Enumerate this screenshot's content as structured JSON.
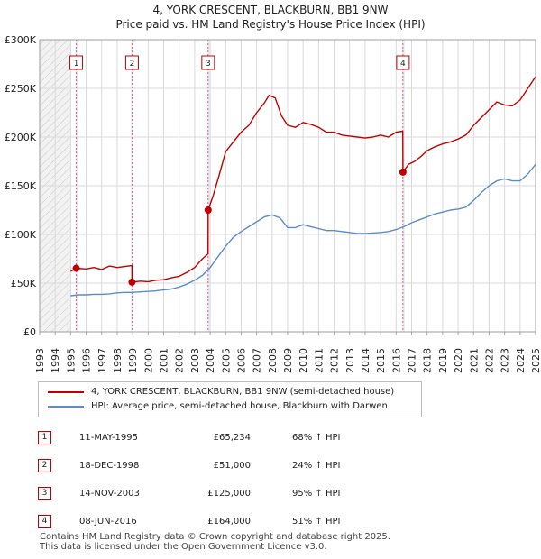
{
  "title_line1": "4, YORK CRESCENT, BLACKBURN, BB1 9NW",
  "title_line2": "Price paid vs. HM Land Registry's House Price Index (HPI)",
  "legend": {
    "property_label": "4, YORK CRESCENT, BLACKBURN, BB1 9NW (semi-detached house)",
    "hpi_label": "HPI: Average price, semi-detached house, Blackburn with Darwen"
  },
  "colors": {
    "property": "#c00000",
    "hpi": "#5b8ccc",
    "shade": "#dce6f5",
    "grid": "#d9d9d9"
  },
  "sales": [
    {
      "num": "1",
      "date": "11-MAY-1995",
      "price": "£65,234",
      "hpi_change": "68% ↑ HPI"
    },
    {
      "num": "2",
      "date": "18-DEC-1998",
      "price": "£51,000",
      "hpi_change": "24% ↑ HPI"
    },
    {
      "num": "3",
      "date": "14-NOV-2003",
      "price": "£125,000",
      "hpi_change": "95% ↑ HPI"
    },
    {
      "num": "4",
      "date": "08-JUN-2016",
      "price": "£164,000",
      "hpi_change": "51% ↑ HPI"
    }
  ],
  "footer_line1": "Contains HM Land Registry data © Crown copyright and database right 2025.",
  "footer_line2": "This data is licensed under the Open Government Licence v3.0.",
  "chart_data": {
    "type": "line",
    "title": "4, YORK CRESCENT, BLACKBURN, BB1 9NW",
    "subtitle": "Price paid vs. HM Land Registry's House Price Index (HPI)",
    "xlabel": "",
    "ylabel": "",
    "xlim": [
      1993,
      2025
    ],
    "ylim": [
      0,
      300000
    ],
    "y_ticks": [
      0,
      50000,
      100000,
      150000,
      200000,
      250000,
      300000
    ],
    "y_tick_labels": [
      "£0",
      "£50K",
      "£100K",
      "£150K",
      "£200K",
      "£250K",
      "£300K"
    ],
    "x_ticks": [
      "1993",
      "1994",
      "1995",
      "1996",
      "1997",
      "1998",
      "1999",
      "2000",
      "2001",
      "2002",
      "2003",
      "2004",
      "2005",
      "2006",
      "2007",
      "2008",
      "2009",
      "2010",
      "2011",
      "2012",
      "2013",
      "2014",
      "2015",
      "2016",
      "2017",
      "2018",
      "2019",
      "2020",
      "2021",
      "2022",
      "2023",
      "2024",
      "2025"
    ],
    "grid": true,
    "legend_position": "bottom",
    "shaded_periods": [
      [
        1993,
        1995
      ],
      [
        2025,
        2025.4
      ]
    ],
    "sale_markers": [
      {
        "label": "1",
        "x": 1995.36,
        "y": 65234
      },
      {
        "label": "2",
        "x": 1998.96,
        "y": 51000
      },
      {
        "label": "3",
        "x": 2003.87,
        "y": 125000
      },
      {
        "label": "4",
        "x": 2016.44,
        "y": 164000
      }
    ],
    "series": [
      {
        "name": "4, YORK CRESCENT, BLACKBURN, BB1 9NW (semi-detached house)",
        "x": [
          1995.0,
          1995.36,
          1996.0,
          1996.5,
          1997.0,
          1997.5,
          1998.0,
          1998.5,
          1998.95,
          1998.96,
          1999.5,
          2000.0,
          2000.5,
          2001.0,
          2001.5,
          2002.0,
          2002.5,
          2003.0,
          2003.5,
          2003.86,
          2003.87,
          2004.2,
          2004.6,
          2005.0,
          2005.5,
          2006.0,
          2006.5,
          2007.0,
          2007.5,
          2007.8,
          2008.2,
          2008.6,
          2009.0,
          2009.5,
          2010.0,
          2010.5,
          2011.0,
          2011.5,
          2012.0,
          2012.5,
          2013.0,
          2013.5,
          2014.0,
          2014.5,
          2015.0,
          2015.5,
          2016.0,
          2016.43,
          2016.44,
          2016.8,
          2017.2,
          2017.6,
          2018.0,
          2018.5,
          2019.0,
          2019.5,
          2020.0,
          2020.5,
          2021.0,
          2021.5,
          2022.0,
          2022.5,
          2023.0,
          2023.5,
          2024.0,
          2024.5,
          2025.0
        ],
        "values": [
          62000,
          65234,
          64500,
          66000,
          64000,
          67500,
          66000,
          67000,
          68000,
          51000,
          52000,
          51500,
          53000,
          53500,
          55500,
          57000,
          61000,
          66000,
          75000,
          80000,
          125000,
          140000,
          162000,
          185000,
          195000,
          205000,
          212000,
          225000,
          235000,
          243000,
          240000,
          222000,
          212000,
          210000,
          215000,
          213000,
          210000,
          205000,
          205000,
          202000,
          201000,
          200000,
          199000,
          200000,
          202000,
          200000,
          205000,
          206000,
          164000,
          172000,
          175000,
          180000,
          186000,
          190000,
          193000,
          195000,
          198000,
          202000,
          212000,
          220000,
          228000,
          236000,
          233000,
          232000,
          238000,
          250000,
          262000
        ]
      },
      {
        "name": "HPI: Average price, semi-detached house, Blackburn with Darwen",
        "x": [
          1995.0,
          1995.5,
          1996.0,
          1996.5,
          1997.0,
          1997.5,
          1998.0,
          1998.5,
          1999.0,
          1999.5,
          2000.0,
          2000.5,
          2001.0,
          2001.5,
          2002.0,
          2002.5,
          2003.0,
          2003.5,
          2004.0,
          2004.5,
          2005.0,
          2005.5,
          2006.0,
          2006.5,
          2007.0,
          2007.5,
          2008.0,
          2008.5,
          2009.0,
          2009.5,
          2010.0,
          2010.5,
          2011.0,
          2011.5,
          2012.0,
          2012.5,
          2013.0,
          2013.5,
          2014.0,
          2014.5,
          2015.0,
          2015.5,
          2016.0,
          2016.5,
          2017.0,
          2017.5,
          2018.0,
          2018.5,
          2019.0,
          2019.5,
          2020.0,
          2020.5,
          2021.0,
          2021.5,
          2022.0,
          2022.5,
          2023.0,
          2023.5,
          2024.0,
          2024.5,
          2025.0
        ],
        "values": [
          37000,
          38000,
          38000,
          38500,
          38500,
          39000,
          40000,
          40500,
          40500,
          41000,
          41500,
          42000,
          43000,
          44000,
          46000,
          49000,
          53000,
          58000,
          66000,
          77000,
          88000,
          97000,
          103000,
          108000,
          113000,
          118000,
          120000,
          117000,
          107000,
          107000,
          110000,
          108000,
          106000,
          104000,
          104000,
          103000,
          102000,
          101000,
          101000,
          101500,
          102000,
          103000,
          105000,
          108000,
          112000,
          115000,
          118000,
          121000,
          123000,
          125000,
          126000,
          128000,
          135000,
          143000,
          150000,
          155000,
          157000,
          155000,
          155000,
          162000,
          172000
        ]
      }
    ]
  }
}
